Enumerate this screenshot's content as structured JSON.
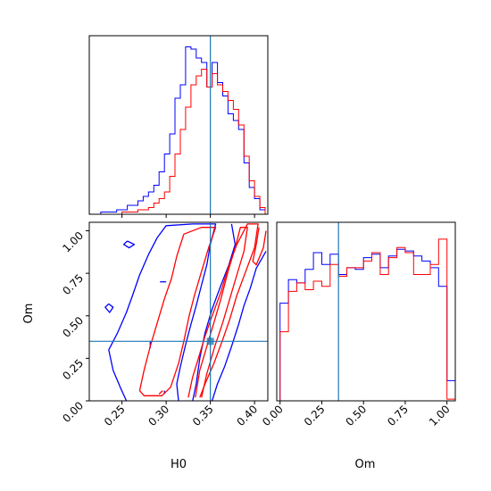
{
  "colors": {
    "series_blue": "#0000ff",
    "series_red": "#ff0000",
    "truth_line": "#1f77b4",
    "axes": "#000000"
  },
  "chart_data": [
    {
      "type": "histogram",
      "panel": "top-left",
      "variable": "H0",
      "xlim": [
        0.213,
        0.415
      ],
      "x_tick_labels_shown": false,
      "y_tick_labels_shown": false,
      "truth_x": 0.35,
      "bin_edges": [
        0.226,
        0.232,
        0.238,
        0.244,
        0.25,
        0.256,
        0.262,
        0.268,
        0.274,
        0.28,
        0.286,
        0.292,
        0.298,
        0.304,
        0.31,
        0.316,
        0.322,
        0.328,
        0.334,
        0.34,
        0.346,
        0.352,
        0.358,
        0.364,
        0.37,
        0.376,
        0.382,
        0.388,
        0.394,
        0.4,
        0.406,
        0.412
      ],
      "series": [
        {
          "color": "blue",
          "values": [
            0.01,
            0.01,
            0.01,
            0.02,
            0.02,
            0.04,
            0.04,
            0.06,
            0.08,
            0.1,
            0.13,
            0.19,
            0.27,
            0.36,
            0.52,
            0.58,
            0.75,
            0.74,
            0.7,
            0.68,
            0.57,
            0.68,
            0.59,
            0.53,
            0.45,
            0.42,
            0.38,
            0.23,
            0.12,
            0.07,
            0.02
          ]
        },
        {
          "color": "red",
          "values": [
            0,
            0,
            0,
            0,
            0.01,
            0.01,
            0.01,
            0.02,
            0.02,
            0.03,
            0.05,
            0.07,
            0.1,
            0.17,
            0.27,
            0.38,
            0.48,
            0.58,
            0.62,
            0.65,
            0.57,
            0.63,
            0.58,
            0.55,
            0.51,
            0.47,
            0.4,
            0.26,
            0.15,
            0.08,
            0.03
          ]
        }
      ]
    },
    {
      "type": "contour",
      "panel": "bottom-left",
      "xlabel": "H0",
      "ylabel": "Om",
      "xlim": [
        0.213,
        0.415
      ],
      "ylim": [
        0.0,
        1.05
      ],
      "x_ticks": [
        {
          "value": 0.25,
          "label": "0.25"
        },
        {
          "value": 0.3,
          "label": "0.30"
        },
        {
          "value": 0.35,
          "label": "0.35"
        },
        {
          "value": 0.4,
          "label": "0.40"
        }
      ],
      "y_ticks": [
        {
          "value": 0.0,
          "label": "0.00"
        },
        {
          "value": 0.25,
          "label": "0.25"
        },
        {
          "value": 0.5,
          "label": "0.50"
        },
        {
          "value": 0.75,
          "label": "0.75"
        },
        {
          "value": 1.0,
          "label": "1.00"
        }
      ],
      "truth": {
        "x": 0.35,
        "y": 0.35
      },
      "series": [
        {
          "color": "blue",
          "contours": [
            [
              [
                0.255,
                0.0
              ],
              [
                0.248,
                0.08
              ],
              [
                0.24,
                0.18
              ],
              [
                0.235,
                0.3
              ],
              [
                0.245,
                0.4
              ],
              [
                0.255,
                0.52
              ],
              [
                0.262,
                0.62
              ],
              [
                0.27,
                0.74
              ],
              [
                0.28,
                0.86
              ],
              [
                0.29,
                0.96
              ],
              [
                0.3,
                1.03
              ],
              [
                0.33,
                1.04
              ],
              [
                0.356,
                1.04
              ],
              [
                0.35,
                0.92
              ],
              [
                0.346,
                0.8
              ],
              [
                0.34,
                0.68
              ],
              [
                0.334,
                0.56
              ],
              [
                0.328,
                0.45
              ],
              [
                0.322,
                0.33
              ],
              [
                0.316,
                0.2
              ],
              [
                0.312,
                0.1
              ],
              [
                0.314,
                0.0
              ]
            ],
            [
              [
                0.374,
                1.04
              ],
              [
                0.378,
                0.92
              ],
              [
                0.371,
                0.8
              ],
              [
                0.362,
                0.68
              ],
              [
                0.352,
                0.54
              ],
              [
                0.344,
                0.4
              ],
              [
                0.338,
                0.25
              ],
              [
                0.334,
                0.1
              ],
              [
                0.33,
                0.0
              ]
            ],
            [
              [
                0.413,
                0.88
              ],
              [
                0.402,
                0.78
              ],
              [
                0.395,
                0.66
              ],
              [
                0.388,
                0.56
              ],
              [
                0.382,
                0.45
              ],
              [
                0.374,
                0.32
              ],
              [
                0.366,
                0.2
              ],
              [
                0.358,
                0.1
              ],
              [
                0.352,
                0.0
              ]
            ],
            [
              [
                0.235,
                0.57
              ],
              [
                0.24,
                0.55
              ],
              [
                0.236,
                0.52
              ],
              [
                0.231,
                0.55
              ],
              [
                0.235,
                0.57
              ]
            ],
            [
              [
                0.256,
                0.94
              ],
              [
                0.264,
                0.92
              ],
              [
                0.258,
                0.9
              ],
              [
                0.252,
                0.92
              ],
              [
                0.256,
                0.94
              ]
            ],
            [
              [
                0.293,
                0.7
              ],
              [
                0.3,
                0.7
              ]
            ],
            [
              [
                0.282,
                0.35
              ],
              [
                0.282,
                0.31
              ]
            ],
            [
              [
                0.298,
                0.06
              ],
              [
                0.298,
                0.04
              ]
            ]
          ]
        },
        {
          "color": "red",
          "contours": [
            [
              [
                0.27,
                0.06
              ],
              [
                0.275,
                0.18
              ],
              [
                0.282,
                0.32
              ],
              [
                0.29,
                0.46
              ],
              [
                0.298,
                0.6
              ],
              [
                0.306,
                0.72
              ],
              [
                0.312,
                0.85
              ],
              [
                0.32,
                0.98
              ],
              [
                0.34,
                1.02
              ],
              [
                0.356,
                1.02
              ],
              [
                0.348,
                0.9
              ],
              [
                0.34,
                0.76
              ],
              [
                0.332,
                0.62
              ],
              [
                0.326,
                0.5
              ],
              [
                0.32,
                0.35
              ],
              [
                0.314,
                0.22
              ],
              [
                0.305,
                0.08
              ],
              [
                0.295,
                0.03
              ],
              [
                0.275,
                0.03
              ],
              [
                0.27,
                0.06
              ]
            ],
            [
              [
                0.333,
                0.02
              ],
              [
                0.338,
                0.18
              ],
              [
                0.346,
                0.32
              ],
              [
                0.354,
                0.46
              ],
              [
                0.362,
                0.6
              ],
              [
                0.37,
                0.76
              ],
              [
                0.378,
                0.9
              ],
              [
                0.384,
                1.02
              ],
              [
                0.392,
                1.02
              ],
              [
                0.388,
                0.88
              ],
              [
                0.38,
                0.74
              ],
              [
                0.372,
                0.6
              ],
              [
                0.364,
                0.46
              ],
              [
                0.355,
                0.32
              ],
              [
                0.346,
                0.16
              ],
              [
                0.34,
                0.02
              ]
            ],
            [
              [
                0.325,
                0.02
              ],
              [
                0.33,
                0.14
              ],
              [
                0.337,
                0.26
              ],
              [
                0.344,
                0.38
              ],
              [
                0.352,
                0.5
              ],
              [
                0.362,
                0.64
              ],
              [
                0.37,
                0.78
              ],
              [
                0.38,
                0.92
              ],
              [
                0.392,
                1.04
              ],
              [
                0.404,
                1.04
              ],
              [
                0.4,
                0.9
              ],
              [
                0.39,
                0.76
              ],
              [
                0.38,
                0.62
              ],
              [
                0.372,
                0.48
              ],
              [
                0.364,
                0.36
              ],
              [
                0.354,
                0.22
              ],
              [
                0.344,
                0.1
              ],
              [
                0.338,
                0.02
              ]
            ],
            [
              [
                0.405,
                1.02
              ],
              [
                0.402,
                0.92
              ],
              [
                0.398,
                0.82
              ],
              [
                0.402,
                0.8
              ],
              [
                0.41,
                0.9
              ],
              [
                0.413,
                1.0
              ]
            ],
            [
              [
                0.292,
                0.04
              ],
              [
                0.296,
                0.06
              ]
            ]
          ]
        }
      ]
    },
    {
      "type": "histogram",
      "panel": "bottom-right",
      "variable": "Om",
      "xlabel": "Om",
      "xlim": [
        -0.02,
        1.05
      ],
      "x_ticks": [
        {
          "value": 0.0,
          "label": "0.00"
        },
        {
          "value": 0.25,
          "label": "0.25"
        },
        {
          "value": 0.5,
          "label": "0.50"
        },
        {
          "value": 0.75,
          "label": "0.75"
        },
        {
          "value": 1.0,
          "label": "1.00"
        }
      ],
      "y_tick_labels_shown": false,
      "truth_x": 0.35,
      "bin_edges": [
        -0.02,
        0.0,
        0.05,
        0.1,
        0.15,
        0.2,
        0.25,
        0.3,
        0.35,
        0.4,
        0.45,
        0.5,
        0.55,
        0.6,
        0.65,
        0.7,
        0.75,
        0.8,
        0.85,
        0.9,
        0.95,
        1.0,
        1.05
      ],
      "series": [
        {
          "color": "blue",
          "values": [
            0.0,
            0.58,
            0.72,
            0.7,
            0.78,
            0.88,
            0.81,
            0.87,
            0.75,
            0.79,
            0.78,
            0.85,
            0.87,
            0.79,
            0.86,
            0.9,
            0.89,
            0.86,
            0.83,
            0.79,
            0.68,
            0.12
          ]
        },
        {
          "color": "red",
          "values": [
            0.0,
            0.41,
            0.65,
            0.7,
            0.66,
            0.71,
            0.68,
            0.81,
            0.74,
            0.79,
            0.79,
            0.83,
            0.88,
            0.75,
            0.85,
            0.91,
            0.88,
            0.75,
            0.75,
            0.81,
            0.96,
            0.01
          ]
        }
      ]
    }
  ]
}
